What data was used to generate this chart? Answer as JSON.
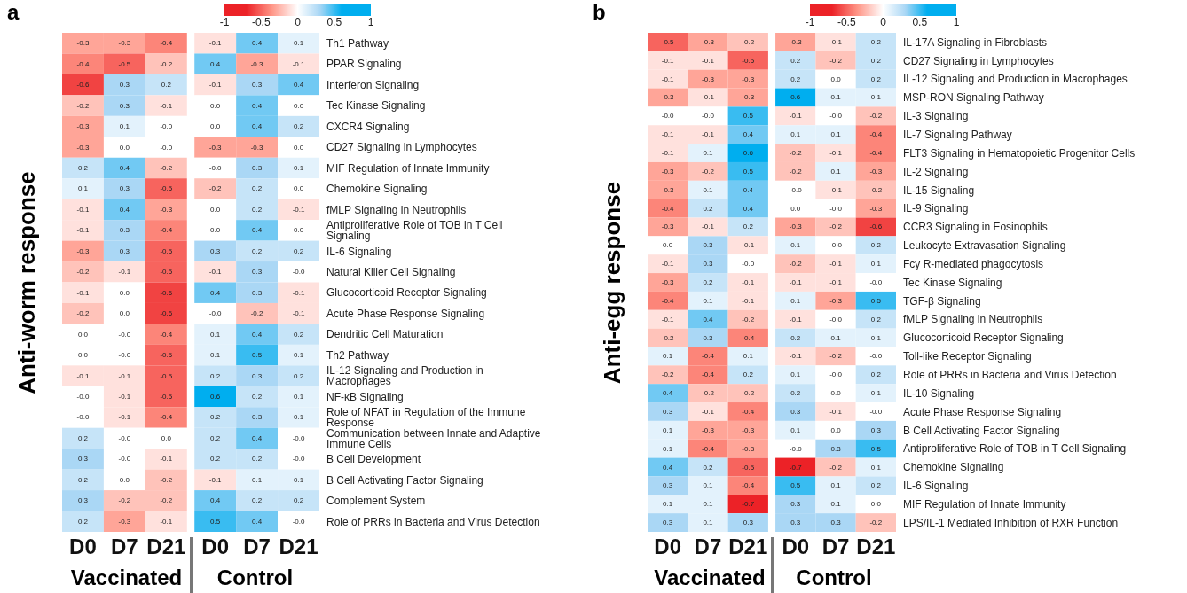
{
  "chart_data": [
    {
      "type": "heatmap",
      "title": "a",
      "ylabel": "Anti-worm response",
      "categories": [
        "D0",
        "D7",
        "D21",
        "D0",
        "D7",
        "D21"
      ],
      "annotations": [
        "Vaccinated",
        "Control"
      ],
      "clim": [
        -1,
        1
      ],
      "cticks": [
        -1,
        -0.5,
        0,
        0.5,
        1
      ],
      "y_categories": [
        "Th1 Pathway",
        "PPAR Signaling",
        "Interferon Signaling",
        "Tec Kinase Signaling",
        "CXCR4 Signaling",
        "CD27 Signaling in Lymphocytes",
        "MIF Regulation of Innate Immunity",
        "Chemokine Signaling",
        "fMLP Signaling in Neutrophils",
        "Antiproliferative Role of TOB in T Cell Signaling",
        "IL-6 Signaling",
        "Natural Killer Cell Signaling",
        "Glucocorticoid Receptor Signaling",
        "Acute Phase Response Signaling",
        "Dendritic Cell Maturation",
        "Th2 Pathway",
        "IL-12 Signaling and Production in Macrophages",
        "NF-κB Signaling",
        "Role of NFAT in Regulation of the Immune Response",
        "Communication between Innate and Adaptive Immune Cells",
        "B Cell Development",
        "B Cell Activating Factor Signaling",
        "Complement System",
        "Role of PRRs in Bacteria and Virus Detection"
      ],
      "cells": [
        [
          -0.3,
          -0.3,
          -0.4,
          -0.1,
          0.4,
          0.1
        ],
        [
          -0.4,
          -0.5,
          -0.2,
          0.4,
          -0.3,
          -0.1
        ],
        [
          -0.6,
          0.3,
          0.2,
          -0.1,
          0.3,
          0.4
        ],
        [
          -0.2,
          0.3,
          -0.1,
          0,
          0.4,
          0
        ],
        [
          -0.3,
          0.1,
          0,
          0,
          0.4,
          0.2
        ],
        [
          -0.3,
          0,
          0,
          -0.3,
          -0.3,
          0
        ],
        [
          0.2,
          0.4,
          -0.2,
          0,
          0.3,
          0.1
        ],
        [
          0.1,
          0.3,
          -0.5,
          -0.2,
          0.2,
          0
        ],
        [
          -0.1,
          0.4,
          -0.3,
          0,
          0.2,
          -0.1
        ],
        [
          -0.1,
          0.3,
          -0.4,
          0,
          0.4,
          0
        ],
        [
          -0.3,
          0.3,
          -0.5,
          0.3,
          0.2,
          0.2
        ],
        [
          -0.2,
          -0.1,
          -0.5,
          -0.1,
          0.3,
          0
        ],
        [
          -0.1,
          0,
          -0.6,
          0.4,
          0.3,
          -0.1
        ],
        [
          -0.2,
          0,
          -0.6,
          0,
          -0.2,
          -0.1
        ],
        [
          0,
          0,
          -0.4,
          0.1,
          0.4,
          0.2
        ],
        [
          0,
          0,
          -0.5,
          0.1,
          0.5,
          0.1
        ],
        [
          -0.1,
          -0.1,
          -0.5,
          0.2,
          0.3,
          0.2
        ],
        [
          0,
          -0.1,
          -0.5,
          0.6,
          0.2,
          0.1
        ],
        [
          0,
          -0.1,
          -0.4,
          0.2,
          0.3,
          0.1
        ],
        [
          0.2,
          0,
          0,
          0.2,
          0.4,
          0
        ],
        [
          0.3,
          0,
          -0.1,
          0.2,
          0.2,
          0
        ],
        [
          0.2,
          0,
          -0.2,
          -0.1,
          0.1,
          0.1
        ],
        [
          0.3,
          -0.2,
          -0.2,
          0.4,
          0.2,
          0.2
        ],
        [
          0.2,
          -0.3,
          -0.1,
          0.5,
          0.4,
          0
        ]
      ],
      "cell_labels": [
        [
          "-0.3",
          "-0.3",
          "-0.4",
          "-0.1",
          "0.4",
          "0.1"
        ],
        [
          "-0.4",
          "-0.5",
          "-0.2",
          "0.4",
          "-0.3",
          "-0.1"
        ],
        [
          "-0.6",
          "0.3",
          "0.2",
          "-0.1",
          "0.3",
          "0.4"
        ],
        [
          "-0.2",
          "0.3",
          "-0.1",
          "0.0",
          "0.4",
          "0.0"
        ],
        [
          "-0.3",
          "0.1",
          "-0.0",
          "0.0",
          "0.4",
          "0.2"
        ],
        [
          "-0.3",
          "0.0",
          "-0.0",
          "-0.3",
          "-0.3",
          "0.0"
        ],
        [
          "0.2",
          "0.4",
          "-0.2",
          "-0.0",
          "0.3",
          "0.1"
        ],
        [
          "0.1",
          "0.3",
          "-0.5",
          "-0.2",
          "0.2",
          "0.0"
        ],
        [
          "-0.1",
          "0.4",
          "-0.3",
          "0.0",
          "0.2",
          "-0.1"
        ],
        [
          "-0.1",
          "0.3",
          "-0.4",
          "0.0",
          "0.4",
          "0.0"
        ],
        [
          "-0.3",
          "0.3",
          "-0.5",
          "0.3",
          "0.2",
          "0.2"
        ],
        [
          "-0.2",
          "-0.1",
          "-0.5",
          "-0.1",
          "0.3",
          "-0.0"
        ],
        [
          "-0.1",
          "0.0",
          "-0.6",
          "0.4",
          "0.3",
          "-0.1"
        ],
        [
          "-0.2",
          "0.0",
          "-0.6",
          "-0.0",
          "-0.2",
          "-0.1"
        ],
        [
          "0.0",
          "-0.0",
          "-0.4",
          "0.1",
          "0.4",
          "0.2"
        ],
        [
          "0.0",
          "-0.0",
          "-0.5",
          "0.1",
          "0.5",
          "0.1"
        ],
        [
          "-0.1",
          "-0.1",
          "-0.5",
          "0.2",
          "0.3",
          "0.2"
        ],
        [
          "-0.0",
          "-0.1",
          "-0.5",
          "0.6",
          "0.2",
          "0.1"
        ],
        [
          "-0.0",
          "-0.1",
          "-0.4",
          "0.2",
          "0.3",
          "0.1"
        ],
        [
          "0.2",
          "-0.0",
          "0.0",
          "0.2",
          "0.4",
          "-0.0"
        ],
        [
          "0.3",
          "-0.0",
          "-0.1",
          "0.2",
          "0.2",
          "-0.0"
        ],
        [
          "0.2",
          "0.0",
          "-0.2",
          "-0.1",
          "0.1",
          "0.1"
        ],
        [
          "0.3",
          "-0.2",
          "-0.2",
          "0.4",
          "0.2",
          "0.2"
        ],
        [
          "0.2",
          "-0.3",
          "-0.1",
          "0.5",
          "0.4",
          "-0.0"
        ]
      ]
    },
    {
      "type": "heatmap",
      "title": "b",
      "ylabel": "Anti-egg response",
      "categories": [
        "D0",
        "D7",
        "D21",
        "D0",
        "D7",
        "D21"
      ],
      "annotations": [
        "Vaccinated",
        "Control"
      ],
      "clim": [
        -1,
        1
      ],
      "cticks": [
        -1,
        -0.5,
        0,
        0.5,
        1
      ],
      "y_categories": [
        "IL-17A Signaling in Fibroblasts",
        "CD27 Signaling in Lymphocytes",
        "IL-12 Signaling and Production in Macrophages",
        "MSP-RON Signaling Pathway",
        "IL-3 Signaling",
        "IL-7 Signaling Pathway",
        "FLT3 Signaling in Hematopoietic Progenitor Cells",
        "IL-2 Signaling",
        "IL-15 Signaling",
        "IL-9 Signaling",
        "CCR3 Signaling in Eosinophils",
        "Leukocyte Extravasation Signaling",
        "Fcγ R-mediated phagocytosis",
        "Tec Kinase Signaling",
        "TGF-β Signaling",
        "fMLP Signaling in Neutrophils",
        "Glucocorticoid Receptor Signaling",
        "Toll-like Receptor Signaling",
        "Role of PRRs in Bacteria and Virus Detection",
        "IL-10 Signaling",
        "Acute Phase Response Signaling",
        "B Cell Activating Factor Signaling",
        "Antiproliferative Role of TOB in T Cell Signaling",
        "Chemokine Signaling",
        "IL-6 Signaling",
        "MIF Regulation of Innate Immunity",
        "LPS/IL-1 Mediated Inhibition of RXR Function"
      ],
      "cells": [
        [
          -0.5,
          -0.3,
          -0.2,
          -0.3,
          -0.1,
          0.2
        ],
        [
          -0.1,
          -0.1,
          -0.5,
          0.2,
          -0.2,
          0.2
        ],
        [
          -0.1,
          -0.3,
          -0.3,
          0.2,
          0,
          0.2
        ],
        [
          -0.3,
          -0.1,
          -0.3,
          0.6,
          0.1,
          0.1
        ],
        [
          0,
          0,
          0.5,
          -0.1,
          0,
          -0.2
        ],
        [
          -0.1,
          -0.1,
          0.4,
          0.1,
          0.1,
          -0.4
        ],
        [
          -0.1,
          0.1,
          0.6,
          -0.2,
          -0.1,
          -0.4
        ],
        [
          -0.3,
          -0.2,
          0.5,
          -0.2,
          0.1,
          -0.3
        ],
        [
          -0.3,
          0.1,
          0.4,
          0,
          -0.1,
          -0.2
        ],
        [
          -0.4,
          0.2,
          0.4,
          0,
          0,
          -0.3
        ],
        [
          -0.3,
          -0.1,
          0.2,
          -0.3,
          -0.2,
          -0.6
        ],
        [
          0,
          0.3,
          -0.1,
          0.1,
          0,
          0.2
        ],
        [
          -0.1,
          0.3,
          0,
          -0.2,
          -0.1,
          0.1
        ],
        [
          -0.3,
          0.2,
          -0.1,
          -0.1,
          -0.1,
          0
        ],
        [
          -0.4,
          0.1,
          -0.1,
          0.1,
          -0.3,
          0.5
        ],
        [
          -0.1,
          0.4,
          -0.2,
          -0.1,
          0,
          0.2
        ],
        [
          -0.2,
          0.3,
          -0.4,
          0.2,
          0.1,
          0.1
        ],
        [
          0.1,
          -0.4,
          0.1,
          -0.1,
          -0.2,
          0
        ],
        [
          -0.2,
          -0.4,
          0.2,
          0.1,
          0,
          0.2
        ],
        [
          0.4,
          -0.2,
          -0.2,
          0.2,
          0,
          0.1
        ],
        [
          0.3,
          -0.1,
          -0.4,
          0.3,
          -0.1,
          0
        ],
        [
          0.1,
          -0.3,
          -0.3,
          0.1,
          0,
          0.3
        ],
        [
          0.1,
          -0.4,
          -0.3,
          0,
          0.3,
          0.5
        ],
        [
          0.4,
          0.2,
          -0.5,
          -0.7,
          -0.2,
          0.1
        ],
        [
          0.3,
          0.1,
          -0.4,
          0.5,
          0.1,
          0.2
        ],
        [
          0.1,
          0.1,
          -0.7,
          0.3,
          0.1,
          0
        ],
        [
          0.3,
          0.1,
          0.3,
          0.3,
          0.3,
          -0.2
        ]
      ],
      "cell_labels": [
        [
          "-0.5",
          "-0.3",
          "-0.2",
          "-0.3",
          "-0.1",
          "0.2"
        ],
        [
          "-0.1",
          "-0.1",
          "-0.5",
          "0.2",
          "-0.2",
          "0.2"
        ],
        [
          "-0.1",
          "-0.3",
          "-0.3",
          "0.2",
          "0.0",
          "0.2"
        ],
        [
          "-0.3",
          "-0.1",
          "-0.3",
          "0.6",
          "0.1",
          "0.1"
        ],
        [
          "-0.0",
          "-0.0",
          "0.5",
          "-0.1",
          "-0.0",
          "-0.2"
        ],
        [
          "-0.1",
          "-0.1",
          "0.4",
          "0.1",
          "0.1",
          "-0.4"
        ],
        [
          "-0.1",
          "0.1",
          "0.6",
          "-0.2",
          "-0.1",
          "-0.4"
        ],
        [
          "-0.3",
          "-0.2",
          "0.5",
          "-0.2",
          "0.1",
          "-0.3"
        ],
        [
          "-0.3",
          "0.1",
          "0.4",
          "-0.0",
          "-0.1",
          "-0.2"
        ],
        [
          "-0.4",
          "0.2",
          "0.4",
          "0.0",
          "-0.0",
          "-0.3"
        ],
        [
          "-0.3",
          "-0.1",
          "0.2",
          "-0.3",
          "-0.2",
          "-0.6"
        ],
        [
          "0.0",
          "0.3",
          "-0.1",
          "0.1",
          "-0.0",
          "0.2"
        ],
        [
          "-0.1",
          "0.3",
          "-0.0",
          "-0.2",
          "-0.1",
          "0.1"
        ],
        [
          "-0.3",
          "0.2",
          "-0.1",
          "-0.1",
          "-0.1",
          "-0.0"
        ],
        [
          "-0.4",
          "0.1",
          "-0.1",
          "0.1",
          "-0.3",
          "0.5"
        ],
        [
          "-0.1",
          "0.4",
          "-0.2",
          "-0.1",
          "-0.0",
          "0.2"
        ],
        [
          "-0.2",
          "0.3",
          "-0.4",
          "0.2",
          "0.1",
          "0.1"
        ],
        [
          "0.1",
          "-0.4",
          "0.1",
          "-0.1",
          "-0.2",
          "-0.0"
        ],
        [
          "-0.2",
          "-0.4",
          "0.2",
          "0.1",
          "-0.0",
          "0.2"
        ],
        [
          "0.4",
          "-0.2",
          "-0.2",
          "0.2",
          "0.0",
          "0.1"
        ],
        [
          "0.3",
          "-0.1",
          "-0.4",
          "0.3",
          "-0.1",
          "-0.0"
        ],
        [
          "0.1",
          "-0.3",
          "-0.3",
          "0.1",
          "0.0",
          "0.3"
        ],
        [
          "0.1",
          "-0.4",
          "-0.3",
          "-0.0",
          "0.3",
          "0.5"
        ],
        [
          "0.4",
          "0.2",
          "-0.5",
          "-0.7",
          "-0.2",
          "0.1"
        ],
        [
          "0.3",
          "0.1",
          "-0.4",
          "0.5",
          "0.1",
          "0.2"
        ],
        [
          "0.1",
          "0.1",
          "-0.7",
          "0.3",
          "0.1",
          "0.0"
        ],
        [
          "0.3",
          "0.1",
          "0.3",
          "0.3",
          "0.3",
          "-0.2"
        ]
      ]
    }
  ]
}
